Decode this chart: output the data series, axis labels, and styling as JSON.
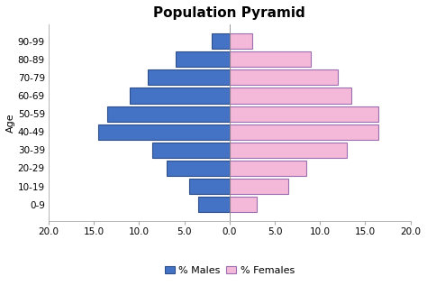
{
  "title": "Population Pyramid",
  "age_groups": [
    "0-9",
    "10-19",
    "20-29",
    "30-39",
    "40-49",
    "50-59",
    "60-69",
    "70-79",
    "80-89",
    "90-99"
  ],
  "males": [
    3.5,
    4.5,
    7.0,
    8.5,
    14.5,
    13.5,
    11.0,
    9.0,
    6.0,
    2.0
  ],
  "females": [
    3.0,
    6.5,
    8.5,
    13.0,
    16.5,
    16.5,
    13.5,
    12.0,
    9.0,
    2.5
  ],
  "male_color": "#4472C4",
  "female_color": "#F4B8D8",
  "male_edge": "#2E4F8A",
  "female_edge": "#9B6EB0",
  "xlim": [
    -20,
    20
  ],
  "xticks": [
    -20,
    -15,
    -10,
    -5,
    0,
    5,
    10,
    15,
    20
  ],
  "xticklabels": [
    "20.0",
    "15.0",
    "10.0",
    "5.0",
    "0.0",
    "5.0",
    "10.0",
    "15.0",
    "20.0"
  ],
  "ylabel": "Age",
  "legend_male": "% Males",
  "legend_female": "% Females",
  "bar_height": 0.85,
  "figsize": [
    4.74,
    3.27
  ],
  "dpi": 100,
  "bg_color": "#FFFFFF",
  "title_fontsize": 11,
  "tick_fontsize": 7.5,
  "ylabel_fontsize": 8
}
